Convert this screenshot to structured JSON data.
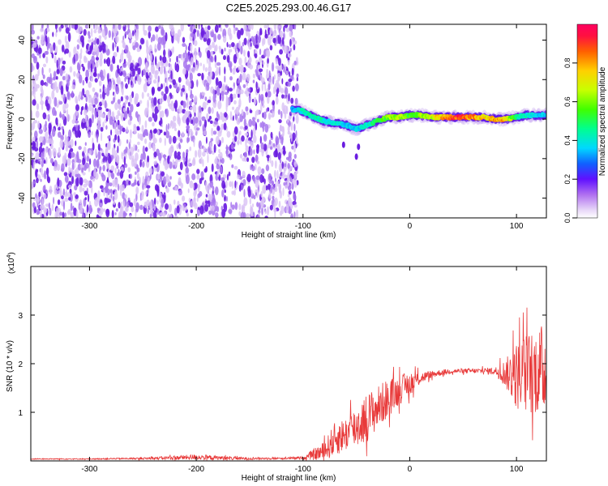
{
  "chart_data": [
    {
      "type": "heatmap",
      "title": "C2E5.2025.293.00.46.G17",
      "xlabel": "Height of straight line (km)",
      "ylabel": "Frequency (Hz)",
      "xlim": [
        -355,
        128
      ],
      "ylim": [
        -50,
        48
      ],
      "xticks": [
        -300,
        -200,
        -100,
        0,
        100
      ],
      "yticks": [
        -40,
        -20,
        0,
        20,
        40
      ],
      "grid": false,
      "colorbar": {
        "label": "Normalized spectral amplitude",
        "range": [
          0,
          1
        ],
        "ticks": [
          "0.0",
          "0.2",
          "0.4",
          "0.6",
          "0.8"
        ]
      },
      "noise_region_km": [
        -355,
        -105
      ],
      "signal_trace": {
        "x": [
          -110,
          -100,
          -90,
          -80,
          -70,
          -60,
          -50,
          -40,
          -30,
          -20,
          -10,
          0,
          10,
          20,
          30,
          40,
          50,
          60,
          70,
          80,
          90,
          100,
          110,
          120,
          128
        ],
        "y": [
          5,
          4,
          1,
          -1,
          -2,
          -3,
          -5,
          -3,
          -1,
          1,
          1,
          2,
          2,
          1,
          1,
          1,
          1,
          1,
          1,
          0,
          0,
          1,
          2,
          2,
          2
        ],
        "amplitude": [
          0.35,
          0.45,
          0.5,
          0.45,
          0.45,
          0.4,
          0.4,
          0.45,
          0.55,
          0.65,
          0.7,
          0.6,
          0.65,
          0.75,
          0.85,
          0.95,
          1.0,
          0.9,
          0.8,
          0.9,
          0.85,
          0.5,
          0.45,
          0.4,
          0.4
        ]
      }
    },
    {
      "type": "line",
      "xlabel": "Height of straight line (km)",
      "ylabel": "SNR (10 * v/v)",
      "y_multiplier": "(x10",
      "y_multiplier_exp": "4",
      "y_multiplier_close": ")",
      "xlim": [
        -355,
        128
      ],
      "ylim": [
        0,
        4
      ],
      "xticks": [
        -300,
        -200,
        -100,
        0,
        100
      ],
      "yticks": [
        1,
        2,
        3
      ],
      "grid": false,
      "series": [
        {
          "color": "#e83a3a",
          "envelope": {
            "x": [
              -355,
              -300,
              -250,
              -210,
              -200,
              -190,
              -160,
              -120,
              -100,
              -80,
              -70,
              -60,
              -50,
              -40,
              -30,
              -20,
              -10,
              0,
              10,
              20,
              30,
              40,
              60,
              80,
              90,
              100,
              110,
              120,
              128
            ],
            "mean": [
              0.04,
              0.04,
              0.05,
              0.07,
              0.08,
              0.07,
              0.05,
              0.05,
              0.06,
              0.2,
              0.45,
              0.55,
              0.7,
              0.9,
              1.1,
              1.3,
              1.45,
              1.6,
              1.7,
              1.78,
              1.82,
              1.85,
              1.85,
              1.85,
              1.8,
              1.75,
              1.8,
              1.85,
              1.9
            ],
            "spread": [
              0.01,
              0.01,
              0.02,
              0.05,
              0.06,
              0.05,
              0.03,
              0.02,
              0.03,
              0.2,
              0.35,
              0.35,
              0.45,
              0.5,
              0.45,
              0.4,
              0.3,
              0.25,
              0.12,
              0.08,
              0.06,
              0.05,
              0.05,
              0.08,
              0.3,
              0.7,
              0.85,
              0.9,
              1.0
            ]
          }
        }
      ]
    }
  ],
  "colors": {
    "background": "#ffffff",
    "axis": "#000000",
    "snr_line": "#e83a3a",
    "noise_purple": "#6a1de0"
  }
}
